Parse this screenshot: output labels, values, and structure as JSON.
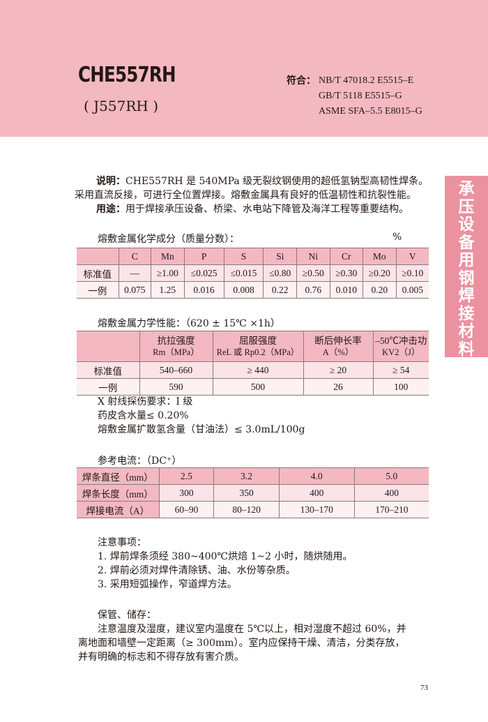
{
  "header": {
    "title": "CHE557RH",
    "subtitle": "( J557RH )",
    "conform_label": "符合：",
    "standards": [
      "NB/T 47018.2 E5515–E",
      "GB/T 5118 E5515–G",
      "ASME SFA–5.5 E8015–G"
    ]
  },
  "side_tab": [
    "承",
    "压",
    "设",
    "备",
    "用",
    "钢",
    "焊",
    "接",
    "材",
    "料"
  ],
  "description": {
    "label": "说明：",
    "text1": "CHE557RH 是 540MPa 级无裂纹钢使用的超低氢钠型高韧性焊条。",
    "text2": "采用直流反接，可进行全位置焊接。熔敷金属具有良好的低温韧性和抗裂性能。",
    "use_label": "用途：",
    "use_text": "用于焊接承压设备、桥梁、水电站下降管及海洋工程等重要结构。"
  },
  "chem": {
    "title": "熔敷金属化学成分（质量分数）：",
    "unit": "%",
    "headers": [
      "",
      "C",
      "Mn",
      "P",
      "S",
      "Si",
      "Ni",
      "Cr",
      "Mo",
      "V"
    ],
    "rows": [
      [
        "标准值",
        "—",
        "≥1.00",
        "≤0.025",
        "≤0.015",
        "≤0.80",
        "≥0.50",
        "≥0.30",
        "≥0.20",
        "≥0.10"
      ],
      [
        "一例",
        "0.075",
        "1.25",
        "0.016",
        "0.008",
        "0.22",
        "0.76",
        "0.010",
        "0.20",
        "0.005"
      ]
    ]
  },
  "mech": {
    "title": "熔敷金属力学性能：",
    "condition": "（620 ± 15℃ ×1h）",
    "headers": [
      [
        "",
        ""
      ],
      [
        "抗拉强度",
        "Rm（MPa）"
      ],
      [
        "屈服强度",
        "ReL 或 Rp0.2（MPa）"
      ],
      [
        "断后伸长率",
        "A（%）"
      ],
      [
        "–50℃冲击功",
        "KV2（J）"
      ]
    ],
    "rows": [
      [
        "标准值",
        "540–660",
        "≥ 440",
        "≥ 20",
        "≥ 54"
      ],
      [
        "一例",
        "590",
        "500",
        "26",
        "100"
      ]
    ],
    "notes": [
      "X 射线探伤要求：I 级",
      "药皮含水量≤ 0.20%",
      "熔敷金属扩散氢含量（甘油法）≤ 3.0mL/100g"
    ]
  },
  "current": {
    "title": "参考电流：",
    "condition": "（DC⁺）",
    "rows": [
      [
        "焊条直径（mm）",
        "2.5",
        "3.2",
        "4.0",
        "5.0"
      ],
      [
        "焊条长度（mm）",
        "300",
        "350",
        "400",
        "400"
      ],
      [
        "焊接电流（A）",
        "60–90",
        "80–120",
        "130–170",
        "170–210"
      ]
    ]
  },
  "cautions": {
    "title": "注意事项：",
    "items": [
      "1. 焊前焊条须经 380~400℃烘焙 1~2 小时，随烘随用。",
      "2. 焊前必须对焊件清除锈、油、水份等杂质。",
      "3. 采用短弧操作，窄道焊方法。"
    ]
  },
  "storage": {
    "title": "保管、储存：",
    "lines": [
      "注意温度及湿度，建议室内温度在 5℃以上，相对湿度不超过 60%，并",
      "离地面和墙壁一定距离（≥ 300mm）。室内应保持干燥、清洁，分类存放，",
      "并有明确的标志和不得存放有害介质。"
    ]
  },
  "page_number": "73"
}
